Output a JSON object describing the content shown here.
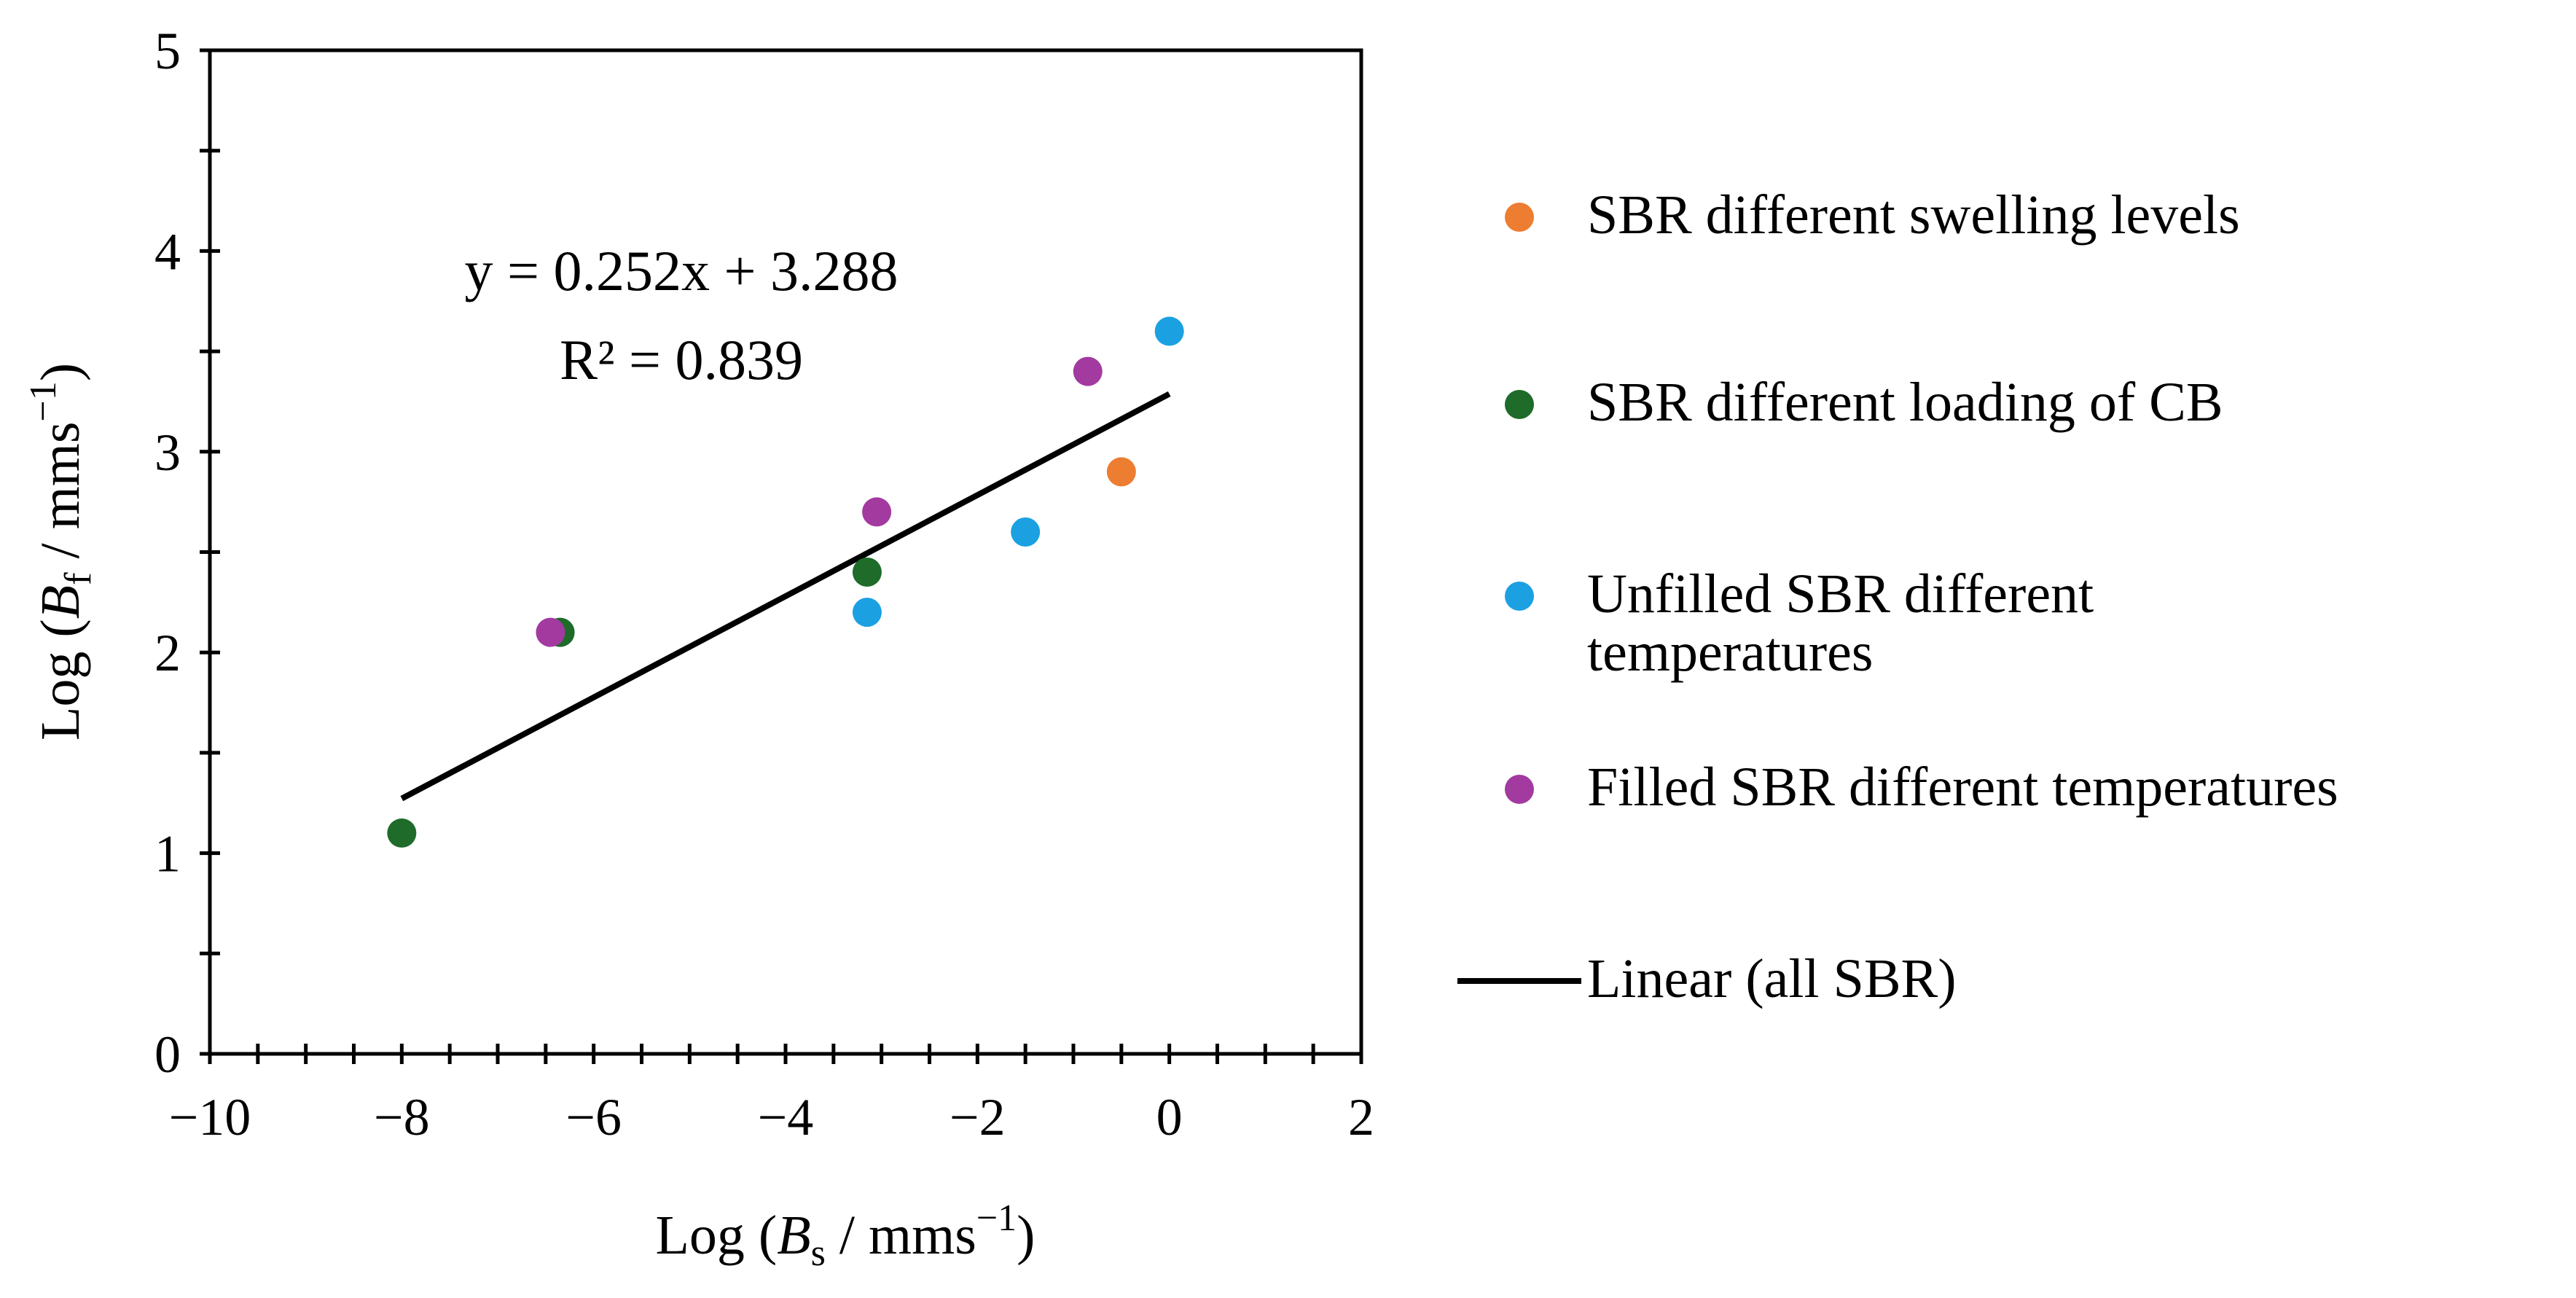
{
  "chart_data": {
    "type": "scatter",
    "title": "",
    "xlabel": {
      "prefix": "Log (",
      "var": "B",
      "sub": "s",
      "unit": " / mms",
      "sup": "−1",
      "suffix": ")"
    },
    "ylabel": {
      "prefix": "Log (",
      "var": "B",
      "sub": "f",
      "unit": " / mms",
      "sup": "−1",
      "suffix": ")"
    },
    "xlim": [
      -10,
      2
    ],
    "ylim": [
      0,
      5
    ],
    "x_major_ticks": [
      -10,
      -8,
      -6,
      -4,
      -2,
      0,
      2
    ],
    "x_tick_labels": [
      "−10",
      "−8",
      "−6",
      "−4",
      "−2",
      "0",
      "2"
    ],
    "x_minor_step": 0.5,
    "y_major_ticks": [
      0,
      1,
      2,
      3,
      4,
      5
    ],
    "y_tick_labels": [
      "0",
      "1",
      "2",
      "3",
      "4",
      "5"
    ],
    "y_minor_step": 0.5,
    "grid": false,
    "legend_position": "right",
    "series": [
      {
        "name": "SBR different swelling levels",
        "color": "#ED7D31",
        "points": [
          [
            -0.5,
            2.9
          ]
        ]
      },
      {
        "name": "SBR different loading of CB",
        "color": "#1E6B2A",
        "points": [
          [
            -8.0,
            1.1
          ],
          [
            -6.35,
            2.1
          ],
          [
            -3.15,
            2.4
          ]
        ]
      },
      {
        "name": "Unfilled SBR different temperatures",
        "name_lines": [
          "Unfilled SBR different",
          "temperatures"
        ],
        "color": "#1BA1E2",
        "points": [
          [
            -3.15,
            2.2
          ],
          [
            -1.5,
            2.6
          ],
          [
            0.0,
            3.6
          ]
        ]
      },
      {
        "name": "Filled SBR different temperatures",
        "color": "#A23AA0",
        "points": [
          [
            -6.45,
            2.1
          ],
          [
            -3.05,
            2.7
          ],
          [
            -0.85,
            3.4
          ]
        ]
      }
    ],
    "trendline": {
      "name": "Linear (all SBR)",
      "color": "#000000",
      "slope": 0.252,
      "intercept": 3.288,
      "x_range": [
        -8.0,
        0.0
      ],
      "equation": "y = 0.252x + 3.288",
      "r_squared": "R² = 0.839"
    }
  }
}
